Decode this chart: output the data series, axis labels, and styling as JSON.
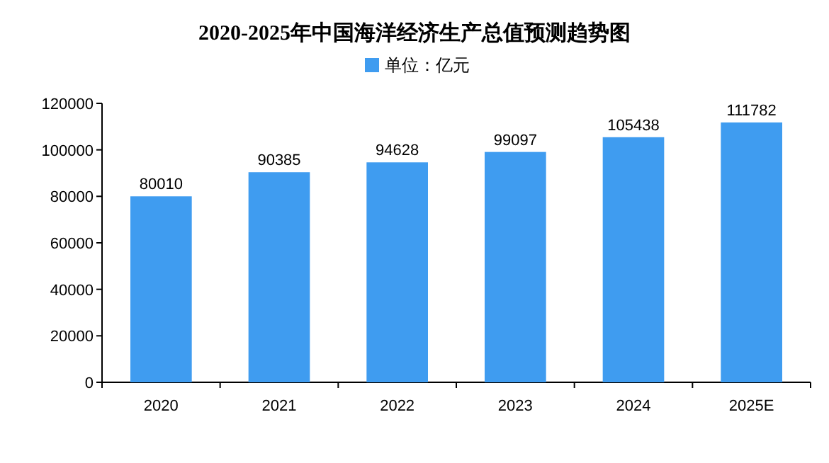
{
  "chart_data": {
    "type": "bar",
    "title": "2020-2025年中国海洋经济生产总值预测趋势图",
    "categories": [
      "2020",
      "2021",
      "2022",
      "2023",
      "2024",
      "2025E"
    ],
    "series": [
      {
        "name": "单位：亿元",
        "color": "#3f9cf0",
        "values": [
          80010,
          90385,
          94628,
          99097,
          105438,
          111782
        ]
      }
    ],
    "ylim": [
      0,
      120000
    ],
    "yticks": [
      0,
      20000,
      40000,
      60000,
      80000,
      100000,
      120000
    ],
    "data_labels": true,
    "legend": "top",
    "grid": false
  }
}
